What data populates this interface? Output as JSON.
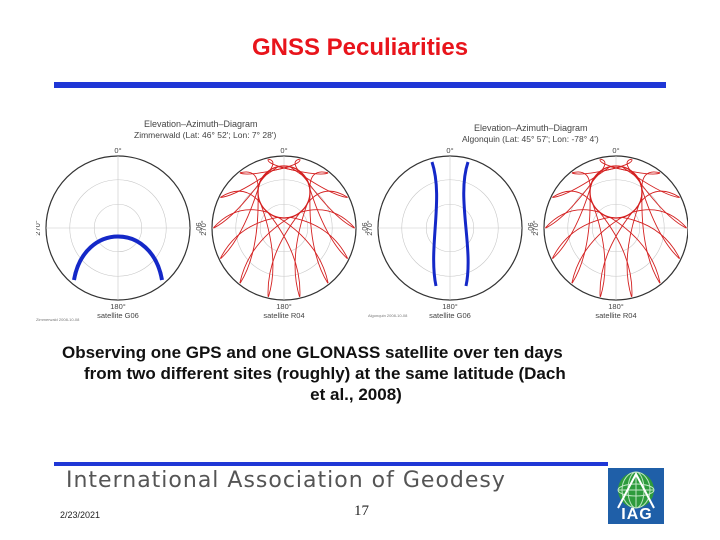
{
  "slide": {
    "title": "GNSS Peculiarities",
    "caption_lines": [
      "Observing one GPS and one GLONASS satellite over ten days",
      "from two different sites (roughly) at the same latitude (Dach",
      "et al., 2008)"
    ],
    "organization": "International Association of Geodesy",
    "date": "2/23/2021",
    "page_number": "17"
  },
  "figure": {
    "left_panel": {
      "heading": "Elevation–Azimuth–Diagram",
      "site": "Zimmerwald (Lat: 46° 52'; Lon: 7° 28')",
      "footnote": "Zimmerwald 2008-10-08"
    },
    "right_panel": {
      "heading": "Elevation–Azimuth–Diagram",
      "site": "Algonquin (Lat: 45° 57'; Lon: -78° 4')",
      "footnote": "Algonquin 2008-10-08"
    },
    "plots": [
      {
        "satellite": "satellite G06",
        "north": "0°",
        "south": "180°",
        "west": "270°",
        "east": "90°",
        "color": "#1428c8"
      },
      {
        "satellite": "satellite R04",
        "north": "0°",
        "south": "180°",
        "west": "270°",
        "east": "90°",
        "color": "#d42020"
      },
      {
        "satellite": "satellite G06",
        "north": "0°",
        "south": "180°",
        "west": "270°",
        "east": "90°",
        "color": "#1428c8"
      },
      {
        "satellite": "satellite R04",
        "north": "0°",
        "south": "180°",
        "west": "270°",
        "east": "90°",
        "color": "#d42020"
      }
    ]
  },
  "logo": {
    "text": "IAG",
    "icon": "iag-globe-logo"
  },
  "colors": {
    "title": "#e8141b",
    "rule": "#1f37d6",
    "gps_track": "#1428c8",
    "glonass_track": "#d42020"
  }
}
